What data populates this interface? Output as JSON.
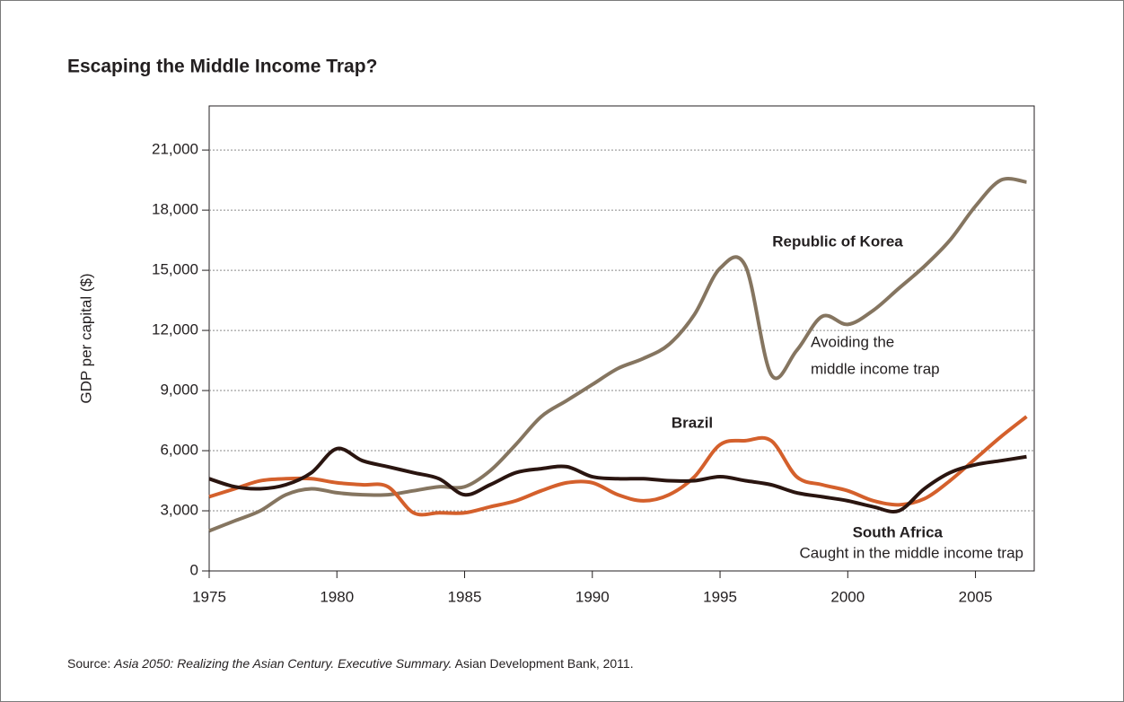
{
  "chart_data": {
    "type": "line",
    "title": "Escaping the Middle Income Trap?",
    "y_label": "GDP per capital ($)",
    "x": [
      1975,
      1976,
      1977,
      1978,
      1979,
      1980,
      1981,
      1982,
      1983,
      1984,
      1985,
      1986,
      1987,
      1988,
      1989,
      1990,
      1991,
      1992,
      1993,
      1994,
      1995,
      1996,
      1997,
      1998,
      1999,
      2000,
      2001,
      2002,
      2003,
      2004,
      2005,
      2006,
      2007
    ],
    "series": [
      {
        "name": "Republic of Korea",
        "color": "#857560",
        "values": [
          2000,
          2500,
          3000,
          3800,
          4100,
          3900,
          3800,
          3800,
          4000,
          4200,
          4200,
          5000,
          6300,
          7700,
          8500,
          9300,
          10100,
          10600,
          11300,
          12800,
          15100,
          15200,
          9800,
          11000,
          12700,
          12300,
          13000,
          14100,
          15200,
          16500,
          18200,
          19500,
          19400
        ]
      },
      {
        "name": "Brazil",
        "color": "#d4602c",
        "values": [
          3700,
          4100,
          4500,
          4600,
          4600,
          4400,
          4300,
          4200,
          2900,
          2900,
          2900,
          3200,
          3500,
          4000,
          4400,
          4400,
          3800,
          3500,
          3800,
          4700,
          6300,
          6500,
          6500,
          4700,
          4300,
          4000,
          3500,
          3300,
          3600,
          4500,
          5600,
          6700,
          7700
        ]
      },
      {
        "name": "South Africa",
        "color": "#2a1510",
        "values": [
          4600,
          4200,
          4100,
          4300,
          4900,
          6100,
          5500,
          5200,
          4900,
          4600,
          3800,
          4300,
          4900,
          5100,
          5200,
          4700,
          4600,
          4600,
          4500,
          4500,
          4700,
          4500,
          4300,
          3900,
          3700,
          3500,
          3200,
          3000,
          4100,
          4900,
          5300,
          5500,
          5700
        ]
      }
    ],
    "annotations": [
      "Avoiding the",
      "middle income trap",
      "Caught in the middle income trap"
    ],
    "xlim": [
      1975,
      2007.3
    ],
    "xticks": [
      1975,
      1980,
      1985,
      1990,
      1995,
      2000,
      2005
    ],
    "ylim": [
      0,
      23200
    ],
    "yticks": [
      0,
      {
        "value": 3000,
        "label": "3,000"
      },
      {
        "value": 6000,
        "label": "6,000"
      },
      {
        "value": 9000,
        "label": "9,000"
      },
      {
        "value": 12000,
        "label": "12,000"
      },
      {
        "value": 15000,
        "label": "15,000"
      },
      {
        "value": 18000,
        "label": "18,000"
      },
      {
        "value": 21000,
        "label": "21,000"
      }
    ],
    "grid": true,
    "source": {
      "lead": "Source: ",
      "work": "Asia 2050: Realizing the Asian Century. Executive Summary.",
      "rest": " Asian Development Bank, 2011."
    }
  }
}
